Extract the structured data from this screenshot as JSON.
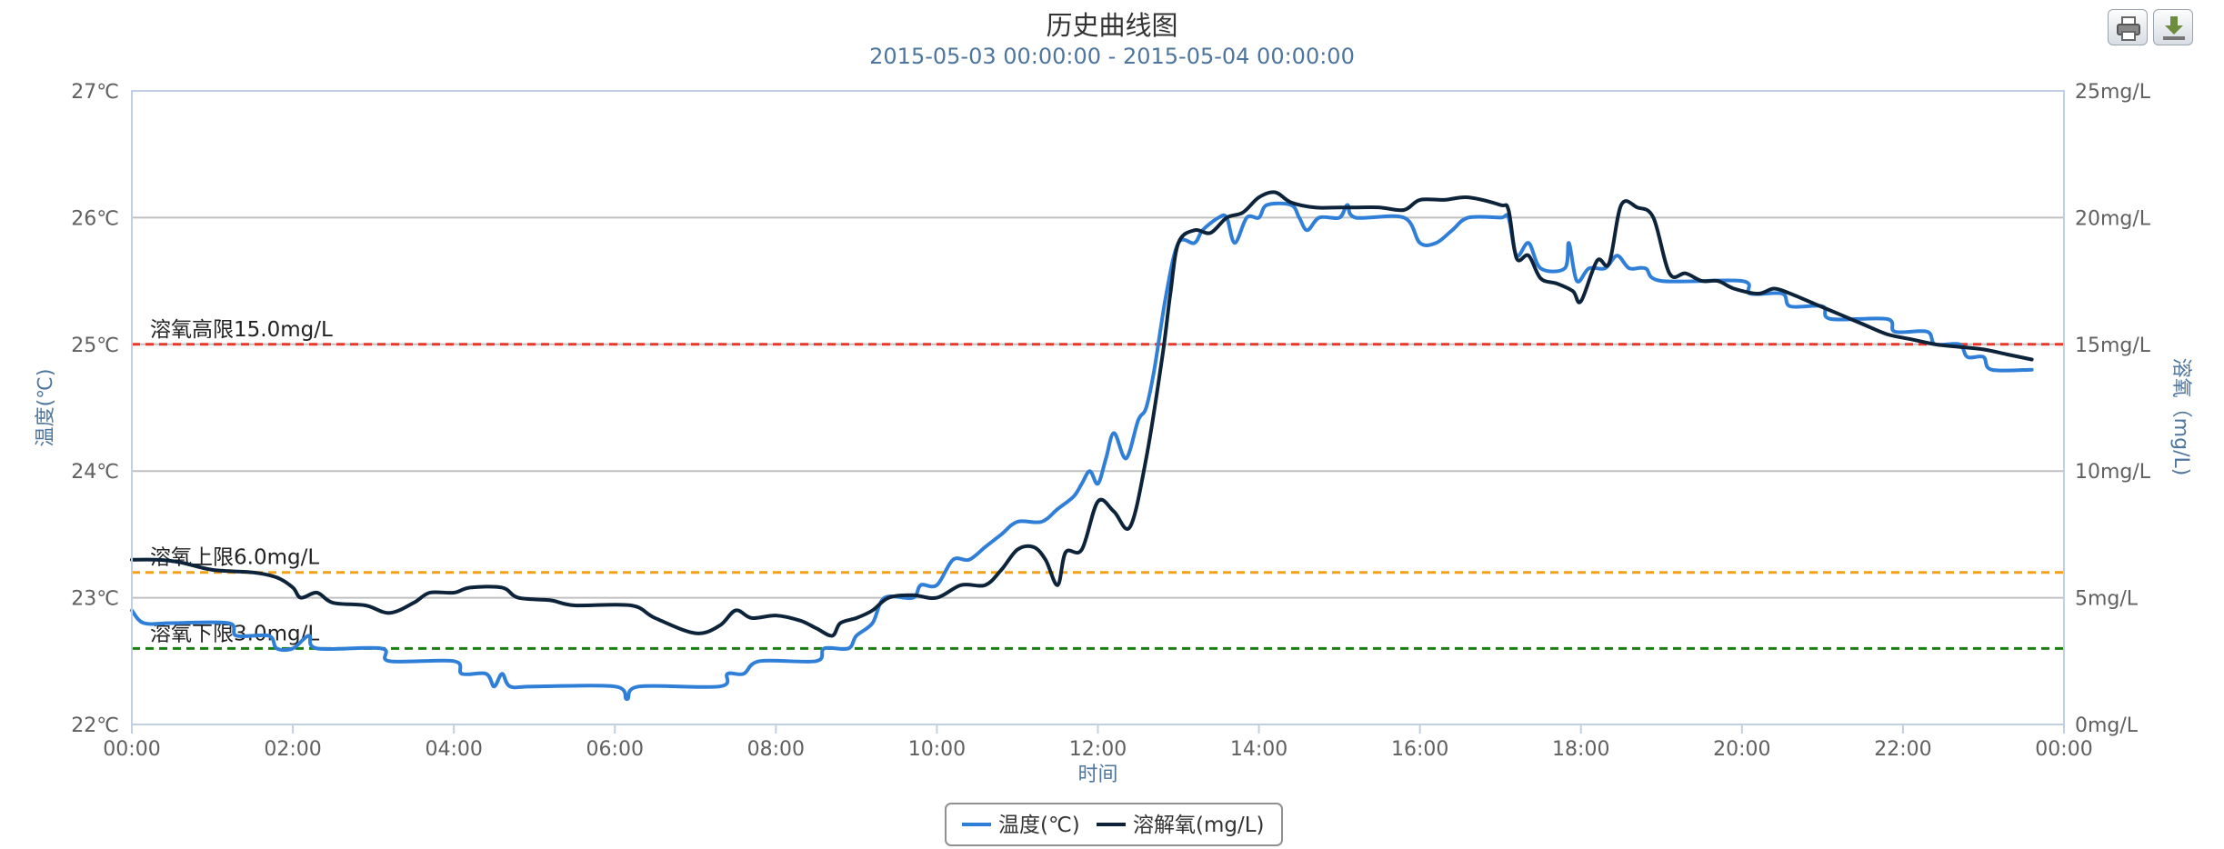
{
  "toolbar": {
    "print_icon": "printer-icon",
    "download_icon": "download-icon"
  },
  "chart_data": {
    "type": "line",
    "title": "历史曲线图",
    "subtitle": "2015-05-03 00:00:00 - 2015-05-04 00:00:00",
    "xlabel": "时间",
    "x_ticks": [
      "00:00",
      "02:00",
      "04:00",
      "06:00",
      "08:00",
      "10:00",
      "12:00",
      "14:00",
      "16:00",
      "18:00",
      "20:00",
      "22:00",
      "00:00"
    ],
    "xlim": [
      0,
      24
    ],
    "y_left": {
      "label": "温度(℃)",
      "ylim": [
        22,
        27
      ],
      "ticks": [
        "22℃",
        "23℃",
        "24℃",
        "25℃",
        "26℃",
        "27℃"
      ]
    },
    "y_right": {
      "label": "溶氧（mg/L)",
      "ylim": [
        0,
        25
      ],
      "ticks": [
        "0mg/L",
        "5mg/L",
        "10mg/L",
        "15mg/L",
        "20mg/L",
        "25mg/L"
      ]
    },
    "plot_lines": [
      {
        "label": "溶氧高限15.0mg/L",
        "value": 15.0,
        "axis": "right",
        "color": "#e8382a",
        "style": "dashed"
      },
      {
        "label": "溶氧上限6.0mg/L",
        "value": 6.0,
        "axis": "right",
        "color": "#f5a21b",
        "style": "dashed"
      },
      {
        "label": "溶氧下限3.0mg/L",
        "value": 3.0,
        "axis": "right",
        "color": "#1a7f12",
        "style": "dashed"
      }
    ],
    "legend_position": "bottom-center",
    "series": [
      {
        "name": "温度(℃)",
        "axis": "left",
        "color": "#2f7ed8",
        "points": [
          [
            0,
            22.9
          ],
          [
            0.15,
            22.8
          ],
          [
            0.5,
            22.8
          ],
          [
            1.2,
            22.8
          ],
          [
            1.3,
            22.7
          ],
          [
            1.7,
            22.7
          ],
          [
            1.8,
            22.6
          ],
          [
            2.0,
            22.6
          ],
          [
            2.2,
            22.7
          ],
          [
            2.3,
            22.6
          ],
          [
            3.1,
            22.6
          ],
          [
            3.2,
            22.5
          ],
          [
            4.0,
            22.5
          ],
          [
            4.1,
            22.4
          ],
          [
            4.4,
            22.4
          ],
          [
            4.5,
            22.3
          ],
          [
            4.6,
            22.4
          ],
          [
            4.7,
            22.3
          ],
          [
            5.0,
            22.3
          ],
          [
            6.0,
            22.3
          ],
          [
            6.15,
            22.2
          ],
          [
            6.3,
            22.3
          ],
          [
            7.3,
            22.3
          ],
          [
            7.4,
            22.4
          ],
          [
            7.6,
            22.4
          ],
          [
            7.8,
            22.5
          ],
          [
            8.5,
            22.5
          ],
          [
            8.6,
            22.6
          ],
          [
            8.9,
            22.6
          ],
          [
            9.0,
            22.7
          ],
          [
            9.2,
            22.8
          ],
          [
            9.35,
            23.0
          ],
          [
            9.7,
            23.0
          ],
          [
            9.8,
            23.1
          ],
          [
            10.0,
            23.1
          ],
          [
            10.2,
            23.3
          ],
          [
            10.4,
            23.3
          ],
          [
            10.6,
            23.4
          ],
          [
            10.8,
            23.5
          ],
          [
            11.0,
            23.6
          ],
          [
            11.3,
            23.6
          ],
          [
            11.5,
            23.7
          ],
          [
            11.7,
            23.8
          ],
          [
            11.8,
            23.9
          ],
          [
            11.9,
            24.0
          ],
          [
            12.0,
            23.9
          ],
          [
            12.1,
            24.1
          ],
          [
            12.2,
            24.3
          ],
          [
            12.35,
            24.1
          ],
          [
            12.5,
            24.4
          ],
          [
            12.6,
            24.5
          ],
          [
            12.7,
            24.8
          ],
          [
            12.85,
            25.4
          ],
          [
            13.0,
            25.8
          ],
          [
            13.2,
            25.8
          ],
          [
            13.3,
            25.9
          ],
          [
            13.5,
            26.0
          ],
          [
            13.6,
            26.0
          ],
          [
            13.7,
            25.8
          ],
          [
            13.85,
            26.0
          ],
          [
            14.0,
            26.0
          ],
          [
            14.1,
            26.1
          ],
          [
            14.4,
            26.1
          ],
          [
            14.5,
            26.0
          ],
          [
            14.6,
            25.9
          ],
          [
            14.75,
            26.0
          ],
          [
            15.0,
            26.0
          ],
          [
            15.1,
            26.1
          ],
          [
            15.2,
            26.0
          ],
          [
            15.8,
            26.0
          ],
          [
            16.0,
            25.8
          ],
          [
            16.2,
            25.8
          ],
          [
            16.4,
            25.9
          ],
          [
            16.6,
            26.0
          ],
          [
            17.0,
            26.0
          ],
          [
            17.1,
            26.0
          ],
          [
            17.2,
            25.7
          ],
          [
            17.35,
            25.8
          ],
          [
            17.5,
            25.6
          ],
          [
            17.8,
            25.6
          ],
          [
            17.85,
            25.8
          ],
          [
            17.95,
            25.5
          ],
          [
            18.1,
            25.6
          ],
          [
            18.3,
            25.6
          ],
          [
            18.45,
            25.7
          ],
          [
            18.6,
            25.6
          ],
          [
            18.8,
            25.6
          ],
          [
            19.0,
            25.5
          ],
          [
            20.0,
            25.5
          ],
          [
            20.1,
            25.4
          ],
          [
            20.5,
            25.4
          ],
          [
            20.6,
            25.3
          ],
          [
            21.0,
            25.3
          ],
          [
            21.1,
            25.2
          ],
          [
            21.8,
            25.2
          ],
          [
            21.9,
            25.1
          ],
          [
            22.3,
            25.1
          ],
          [
            22.4,
            25.0
          ],
          [
            22.7,
            25.0
          ],
          [
            22.8,
            24.9
          ],
          [
            23.0,
            24.9
          ],
          [
            23.1,
            24.8
          ],
          [
            23.6,
            24.8
          ]
        ]
      },
      {
        "name": "溶解氧(mg/L)",
        "axis": "right",
        "color": "#0d233a",
        "points": [
          [
            0,
            6.5
          ],
          [
            0.3,
            6.5
          ],
          [
            0.6,
            6.4
          ],
          [
            1.0,
            6.1
          ],
          [
            1.5,
            6.0
          ],
          [
            1.8,
            5.8
          ],
          [
            2.0,
            5.4
          ],
          [
            2.1,
            5.0
          ],
          [
            2.3,
            5.2
          ],
          [
            2.5,
            4.8
          ],
          [
            2.9,
            4.7
          ],
          [
            3.2,
            4.4
          ],
          [
            3.5,
            4.8
          ],
          [
            3.7,
            5.2
          ],
          [
            4.0,
            5.2
          ],
          [
            4.2,
            5.4
          ],
          [
            4.6,
            5.4
          ],
          [
            4.8,
            5.0
          ],
          [
            5.2,
            4.9
          ],
          [
            5.5,
            4.7
          ],
          [
            6.2,
            4.7
          ],
          [
            6.5,
            4.2
          ],
          [
            7.0,
            3.6
          ],
          [
            7.3,
            3.9
          ],
          [
            7.5,
            4.5
          ],
          [
            7.7,
            4.2
          ],
          [
            8.0,
            4.3
          ],
          [
            8.3,
            4.1
          ],
          [
            8.5,
            3.8
          ],
          [
            8.7,
            3.5
          ],
          [
            8.8,
            4.0
          ],
          [
            9.0,
            4.2
          ],
          [
            9.2,
            4.5
          ],
          [
            9.4,
            5.0
          ],
          [
            9.7,
            5.1
          ],
          [
            10.0,
            5.0
          ],
          [
            10.3,
            5.5
          ],
          [
            10.6,
            5.5
          ],
          [
            10.8,
            6.1
          ],
          [
            11.0,
            6.9
          ],
          [
            11.2,
            7.0
          ],
          [
            11.35,
            6.5
          ],
          [
            11.5,
            5.5
          ],
          [
            11.6,
            6.8
          ],
          [
            11.8,
            6.9
          ],
          [
            12.0,
            8.8
          ],
          [
            12.2,
            8.4
          ],
          [
            12.4,
            7.8
          ],
          [
            12.6,
            10.5
          ],
          [
            12.8,
            14.5
          ],
          [
            12.9,
            17.0
          ],
          [
            13.0,
            19.0
          ],
          [
            13.2,
            19.5
          ],
          [
            13.4,
            19.4
          ],
          [
            13.6,
            20.0
          ],
          [
            13.8,
            20.2
          ],
          [
            14.0,
            20.8
          ],
          [
            14.2,
            21.0
          ],
          [
            14.4,
            20.6
          ],
          [
            14.7,
            20.4
          ],
          [
            15.0,
            20.4
          ],
          [
            15.2,
            20.4
          ],
          [
            15.5,
            20.4
          ],
          [
            15.8,
            20.3
          ],
          [
            16.0,
            20.7
          ],
          [
            16.3,
            20.7
          ],
          [
            16.6,
            20.8
          ],
          [
            17.0,
            20.5
          ],
          [
            17.1,
            20.3
          ],
          [
            17.2,
            18.4
          ],
          [
            17.35,
            18.5
          ],
          [
            17.5,
            17.6
          ],
          [
            17.7,
            17.4
          ],
          [
            17.9,
            17.1
          ],
          [
            18.0,
            16.7
          ],
          [
            18.2,
            18.3
          ],
          [
            18.35,
            18.2
          ],
          [
            18.5,
            20.5
          ],
          [
            18.7,
            20.4
          ],
          [
            18.9,
            20.0
          ],
          [
            19.1,
            17.8
          ],
          [
            19.3,
            17.8
          ],
          [
            19.5,
            17.5
          ],
          [
            19.7,
            17.5
          ],
          [
            19.9,
            17.2
          ],
          [
            20.2,
            17.0
          ],
          [
            20.4,
            17.2
          ],
          [
            20.6,
            17.0
          ],
          [
            20.9,
            16.6
          ],
          [
            21.2,
            16.2
          ],
          [
            21.5,
            15.8
          ],
          [
            21.8,
            15.4
          ],
          [
            22.1,
            15.2
          ],
          [
            22.4,
            15.0
          ],
          [
            22.7,
            14.9
          ],
          [
            23.0,
            14.8
          ],
          [
            23.3,
            14.6
          ],
          [
            23.6,
            14.4
          ]
        ]
      }
    ]
  }
}
